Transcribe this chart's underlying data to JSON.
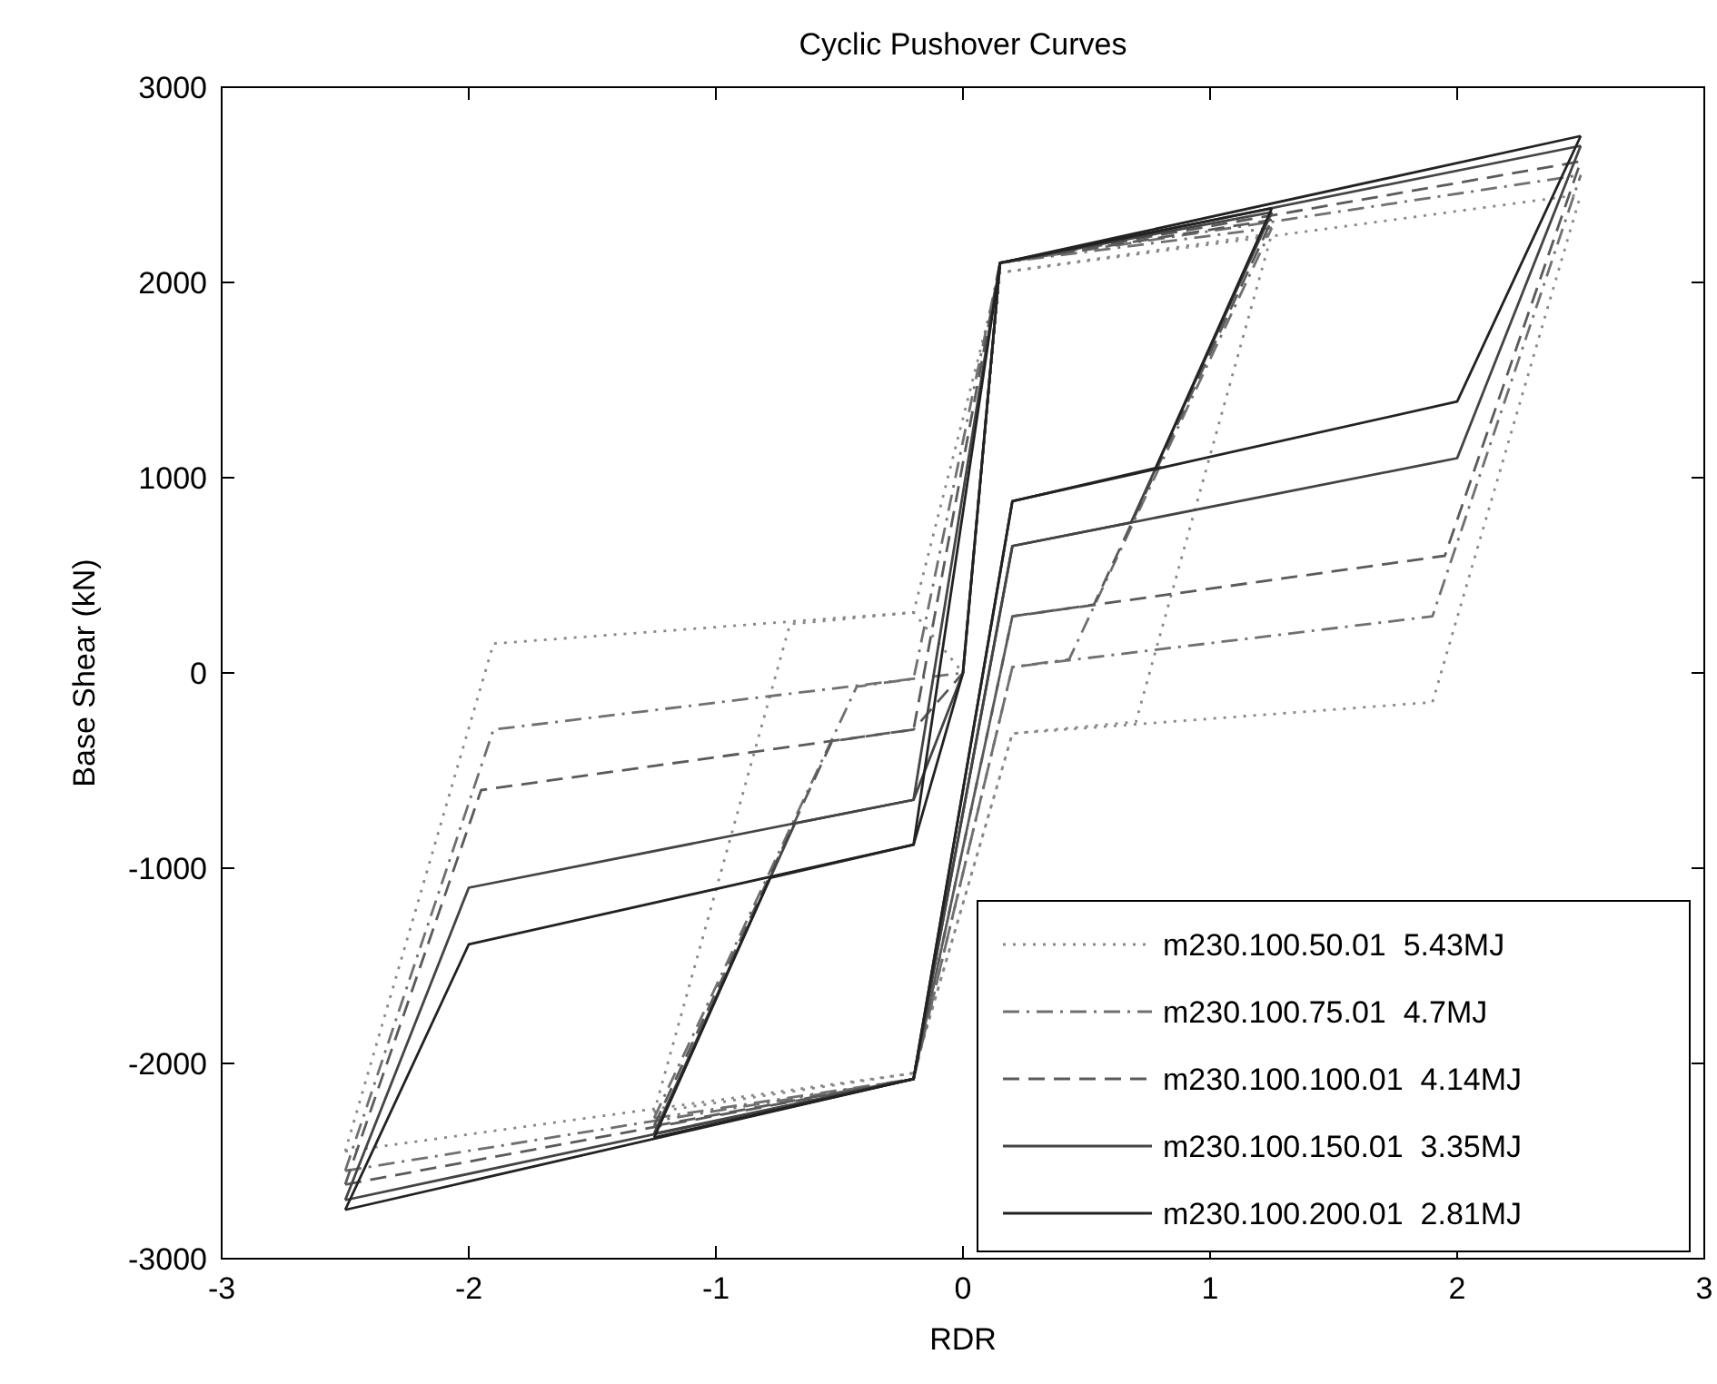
{
  "chart_data": {
    "type": "line",
    "title": "Cyclic Pushover Curves",
    "xlabel": "RDR",
    "ylabel": "Base Shear (kN)",
    "xlim": [
      -3,
      3
    ],
    "xticks": [
      -3,
      -2,
      -1,
      0,
      1,
      2,
      3
    ],
    "ylim": [
      -3000,
      3000
    ],
    "yticks": [
      -3000,
      -2000,
      -1000,
      0,
      1000,
      2000,
      3000
    ],
    "grid": false,
    "legend": "bottom right",
    "marker": "none",
    "series": [
      {
        "name": "m230.100.50.01  5.43MJ",
        "color": "#888888",
        "line_style": "dotted",
        "x": [
          -2.5,
          -1.9,
          -0.2,
          0,
          0.15,
          1.25
        ],
        "values": [
          -2450,
          150,
          310,
          0,
          2050,
          2250
        ]
      },
      {
        "color": "#888888",
        "line_style": "dotted",
        "x": [
          -1.25,
          -0.2,
          0.2,
          0.7,
          1.25
        ],
        "values": [
          -2250,
          -2050,
          -310,
          -250,
          2250
        ]
      },
      {
        "color": "#888888",
        "line_style": "dotted",
        "x": [
          -1.25,
          -0.7,
          -0.2,
          0.15,
          2.5
        ],
        "values": [
          -2250,
          250,
          310,
          2050,
          2450
        ]
      },
      {
        "color": "#888888",
        "line_style": "dotted",
        "x": [
          -2.5,
          -0.2,
          0.2,
          1.9,
          2.5
        ],
        "values": [
          -2450,
          -2050,
          -310,
          -150,
          2450
        ]
      },
      {
        "name": "m230.100.75.01  4.7MJ",
        "color": "#707070",
        "line_style": "dashdot",
        "x": [
          -2.5,
          -1.9,
          -0.2,
          0,
          0.15,
          1.25
        ],
        "values": [
          -2550,
          -290,
          -30,
          0,
          2100,
          2280
        ]
      },
      {
        "color": "#707070",
        "line_style": "dashdot",
        "x": [
          -1.25,
          -0.2,
          0.2,
          0.43,
          1.25
        ],
        "values": [
          -2280,
          -2080,
          30,
          70,
          2280
        ]
      },
      {
        "color": "#707070",
        "line_style": "dashdot",
        "x": [
          -1.25,
          -0.43,
          -0.2,
          0.15,
          2.5
        ],
        "values": [
          -2280,
          -70,
          -30,
          2100,
          2550
        ]
      },
      {
        "color": "#707070",
        "line_style": "dashdot",
        "x": [
          -2.5,
          -0.2,
          0.2,
          1.9,
          2.5
        ],
        "values": [
          -2550,
          -2080,
          30,
          290,
          2550
        ]
      },
      {
        "name": "m230.100.100.01  4.14MJ",
        "color": "#5a5a5a",
        "line_style": "dashed",
        "x": [
          -2.5,
          -1.95,
          -0.2,
          0,
          0.15,
          1.25
        ],
        "values": [
          -2620,
          -600,
          -290,
          0,
          2100,
          2320
        ]
      },
      {
        "color": "#5a5a5a",
        "line_style": "dashed",
        "x": [
          -1.25,
          -0.2,
          0.2,
          0.53,
          1.25
        ],
        "values": [
          -2320,
          -2080,
          290,
          350,
          2320
        ]
      },
      {
        "color": "#5a5a5a",
        "line_style": "dashed",
        "x": [
          -1.25,
          -0.53,
          -0.2,
          0.15,
          2.5
        ],
        "values": [
          -2320,
          -350,
          -290,
          2100,
          2620
        ]
      },
      {
        "color": "#5a5a5a",
        "line_style": "dashed",
        "x": [
          -2.5,
          -0.2,
          0.2,
          1.95,
          2.5
        ],
        "values": [
          -2620,
          -2080,
          290,
          600,
          2620
        ]
      },
      {
        "name": "m230.100.150.01  3.35MJ",
        "color": "#444444",
        "line_style": "solid",
        "x": [
          -2.5,
          -2.0,
          -0.2,
          0,
          0.15,
          1.25
        ],
        "values": [
          -2700,
          -1100,
          -650,
          0,
          2100,
          2360
        ]
      },
      {
        "color": "#444444",
        "line_style": "solid",
        "x": [
          -1.25,
          -0.2,
          0.2,
          0.68,
          1.25
        ],
        "values": [
          -2360,
          -2080,
          650,
          770,
          2360
        ]
      },
      {
        "color": "#444444",
        "line_style": "solid",
        "x": [
          -1.25,
          -0.68,
          -0.2,
          0.15,
          2.5
        ],
        "values": [
          -2360,
          -770,
          -650,
          2100,
          2700
        ]
      },
      {
        "color": "#444444",
        "line_style": "solid",
        "x": [
          -2.5,
          -0.2,
          0.2,
          2.0,
          2.5
        ],
        "values": [
          -2700,
          -2080,
          650,
          1100,
          2700
        ]
      },
      {
        "name": "m230.100.200.01  2.81MJ",
        "color": "#222222",
        "line_style": "solid",
        "x": [
          -2.5,
          -2.0,
          -0.2,
          0,
          0.15,
          1.25
        ],
        "values": [
          -2750,
          -1390,
          -880,
          0,
          2100,
          2380
        ]
      },
      {
        "color": "#222222",
        "line_style": "solid",
        "x": [
          -1.25,
          -0.2,
          0.2,
          0.78,
          1.25
        ],
        "values": [
          -2380,
          -2080,
          880,
          1050,
          2380
        ]
      },
      {
        "color": "#222222",
        "line_style": "solid",
        "x": [
          -1.25,
          -0.78,
          -0.2,
          0.15,
          2.5
        ],
        "values": [
          -2380,
          -1050,
          -880,
          2100,
          2750
        ]
      },
      {
        "color": "#222222",
        "line_style": "solid",
        "x": [
          -2.5,
          -0.2,
          0.2,
          2.0,
          2.5
        ],
        "values": [
          -2750,
          -2080,
          880,
          1390,
          2750
        ]
      }
    ]
  }
}
